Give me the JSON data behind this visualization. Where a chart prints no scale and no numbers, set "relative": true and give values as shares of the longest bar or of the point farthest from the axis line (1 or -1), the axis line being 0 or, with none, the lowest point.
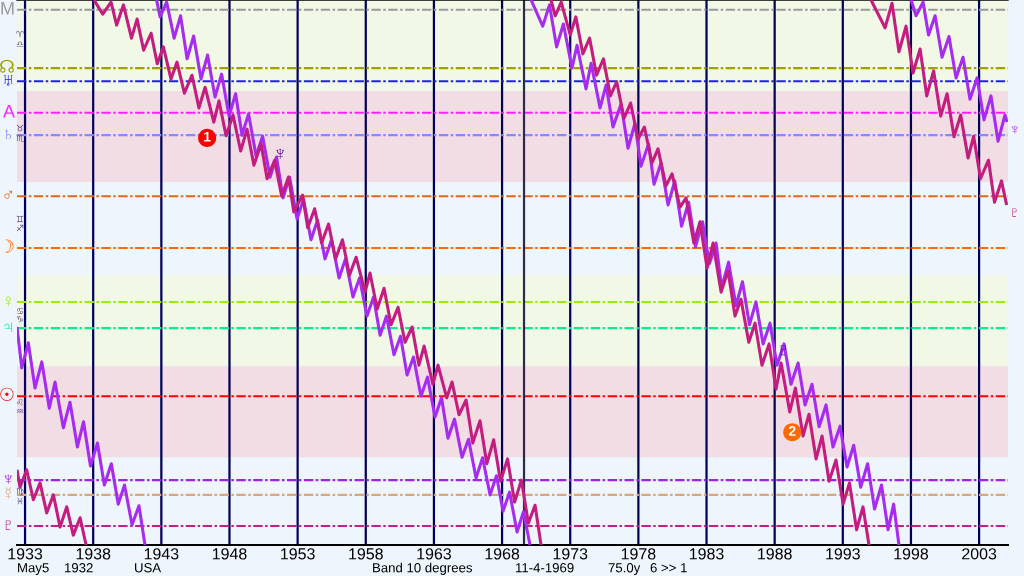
{
  "chart_data": {
    "type": "line",
    "relative": true,
    "xlim": [
      1932.41,
      2005.12
    ],
    "xticks": [
      1933,
      1938,
      1943,
      1948,
      1953,
      1958,
      1963,
      1968,
      1973,
      1978,
      1983,
      1988,
      1993,
      1998,
      2003
    ],
    "grid": "x",
    "series": [
      {
        "color": "#a52cf0",
        "x": [
          1932.41,
          1932.76,
          1933.24,
          1933.73,
          1934.23,
          1934.78,
          1935.2,
          1935.81,
          1936.3,
          1936.84,
          1937.29,
          1937.8,
          1938.31,
          1938.82,
          1939.33,
          1939.84,
          1940.3,
          1940.85,
          1941.36,
          1941.8
        ],
        "values": [
          0.4,
          0.325,
          0.371,
          0.288,
          0.336,
          0.251,
          0.299,
          0.215,
          0.262,
          0.18,
          0.226,
          0.145,
          0.187,
          0.11,
          0.149,
          0.075,
          0.11,
          0.037,
          0.072,
          0
        ]
      },
      {
        "color": "#a52cf0",
        "x": [
          1942.65,
          1942.91,
          1943.39,
          1943.94,
          1944.41,
          1944.89,
          1945.37,
          1945.91,
          1946.39,
          1946.94,
          1947.42,
          1947.97,
          1948.45,
          1948.92,
          1949.4,
          1949.95,
          1950.43,
          1950.98,
          1951.45,
          1951.93,
          1952.41,
          1952.96,
          1953.43,
          1953.98,
          1954.46,
          1955.01,
          1955.49,
          1956.04,
          1956.51,
          1957.06,
          1957.54,
          1958.09,
          1958.57,
          1959.05,
          1959.52,
          1960.07,
          1960.55,
          1961.03,
          1961.5,
          1962.05,
          1962.53,
          1963.08,
          1963.56,
          1964.03,
          1964.51,
          1965.06,
          1965.54,
          1966.09,
          1966.57,
          1967.12,
          1967.59,
          1968.07,
          1968.55,
          1969.1,
          1969.57,
          1970.05
        ],
        "values": [
          1,
          0.969,
          0.996,
          0.93,
          0.971,
          0.892,
          0.934,
          0.855,
          0.899,
          0.822,
          0.864,
          0.787,
          0.828,
          0.752,
          0.791,
          0.714,
          0.75,
          0.675,
          0.712,
          0.637,
          0.675,
          0.598,
          0.635,
          0.56,
          0.596,
          0.525,
          0.56,
          0.49,
          0.525,
          0.455,
          0.49,
          0.42,
          0.455,
          0.385,
          0.42,
          0.349,
          0.383,
          0.312,
          0.345,
          0.273,
          0.308,
          0.235,
          0.27,
          0.196,
          0.231,
          0.161,
          0.194,
          0.123,
          0.16,
          0.092,
          0.127,
          0.062,
          0.097,
          0.024,
          0.061,
          0
        ]
      },
      {
        "color": "#a52cf0",
        "x": [
          1970.13,
          1970.98,
          1971.48,
          1972.0,
          1972.5,
          1973.13,
          1973.5,
          1974.16,
          1974.53,
          1975.19,
          1975.63,
          1976.14,
          1976.73,
          1977.24,
          1977.75,
          1978.19,
          1978.75,
          1979.15,
          1979.66,
          1980.18,
          1980.67,
          1981.17,
          1981.69,
          1982.19,
          1982.71,
          1983.21,
          1983.7,
          1984.11,
          1984.62,
          1985.16,
          1985.64,
          1986.15,
          1986.63,
          1987.15,
          1987.66,
          1988.17,
          1988.69,
          1989.2,
          1989.72,
          1990.23,
          1990.74,
          1991.26,
          1991.77,
          1992.28,
          1992.8,
          1993.31,
          1993.8,
          1994.31,
          1994.82,
          1995.33,
          1995.84,
          1996.32,
          1996.73,
          1997.12
        ],
        "values": [
          1,
          0.952,
          0.991,
          0.914,
          0.956,
          0.875,
          0.917,
          0.837,
          0.884,
          0.802,
          0.844,
          0.767,
          0.809,
          0.728,
          0.774,
          0.695,
          0.736,
          0.662,
          0.701,
          0.624,
          0.668,
          0.585,
          0.629,
          0.547,
          0.593,
          0.516,
          0.554,
          0.472,
          0.519,
          0.439,
          0.483,
          0.404,
          0.446,
          0.369,
          0.407,
          0.33,
          0.369,
          0.295,
          0.334,
          0.257,
          0.295,
          0.217,
          0.257,
          0.18,
          0.218,
          0.143,
          0.183,
          0.106,
          0.149,
          0.066,
          0.11,
          0.028,
          0.075,
          0
        ]
      },
      {
        "name": "♆",
        "color": "#a52cf0",
        "x": [
          1998.01,
          1998.37,
          1998.89,
          1999.29,
          1999.77,
          2000.28,
          2000.79,
          2001.31,
          2001.82,
          2002.33,
          2002.85,
          2003.36,
          2003.87,
          2004.39,
          2004.9,
          2005.05
        ],
        "values": [
          1,
          0.971,
          0.996,
          0.936,
          0.971,
          0.895,
          0.933,
          0.857,
          0.895,
          0.818,
          0.857,
          0.78,
          0.824,
          0.741,
          0.789,
          0.776
        ]
      },
      {
        "color": "#c41d7e",
        "x": [
          1932.41,
          1932.63,
          1933.12,
          1933.61,
          1934.1,
          1934.59,
          1935.08,
          1935.57,
          1936.06,
          1936.54,
          1937.04,
          1937.48
        ],
        "values": [
          0.138,
          0.106,
          0.138,
          0.083,
          0.114,
          0.059,
          0.092,
          0.033,
          0.07,
          0.018,
          0.05,
          0
        ]
      },
      {
        "color": "#c41d7e",
        "x": [
          1938.06,
          1938.7,
          1939.31,
          1939.72,
          1940.22,
          1940.81,
          1941.22,
          1941.7,
          1942.25,
          1942.7,
          1943.15,
          1943.71,
          1944.15,
          1944.69,
          1945.25,
          1945.76,
          1946.21,
          1946.85,
          1947.23,
          1947.75,
          1948.26,
          1948.82,
          1949.29,
          1949.79,
          1950.32,
          1950.76,
          1951.31,
          1951.83,
          1952.33,
          1952.72,
          1953.36,
          1953.74,
          1954.25,
          1954.76,
          1955.27,
          1955.78,
          1956.29,
          1956.8,
          1957.29,
          1957.95,
          1958.31,
          1958.84,
          1959.34,
          1959.85,
          1960.37,
          1960.88,
          1961.4,
          1961.9,
          1962.28,
          1962.92,
          1963.3,
          1963.94,
          1964.33,
          1964.84,
          1965.36,
          1965.85,
          1966.38,
          1966.88,
          1967.38,
          1967.89,
          1968.4,
          1968.92,
          1969.42,
          1969.93,
          1970.42,
          1970.86
        ],
        "values": [
          1,
          0.974,
          0.996,
          0.954,
          0.991,
          0.93,
          0.965,
          0.908,
          0.939,
          0.883,
          0.914,
          0.855,
          0.886,
          0.829,
          0.862,
          0.802,
          0.84,
          0.776,
          0.815,
          0.751,
          0.789,
          0.723,
          0.763,
          0.697,
          0.736,
          0.672,
          0.706,
          0.64,
          0.675,
          0.611,
          0.642,
          0.582,
          0.617,
          0.554,
          0.589,
          0.525,
          0.56,
          0.495,
          0.528,
          0.464,
          0.499,
          0.433,
          0.471,
          0.404,
          0.436,
          0.372,
          0.4,
          0.33,
          0.365,
          0.295,
          0.33,
          0.27,
          0.299,
          0.239,
          0.266,
          0.187,
          0.228,
          0.149,
          0.193,
          0.117,
          0.158,
          0.079,
          0.119,
          0.04,
          0.073,
          0
        ]
      },
      {
        "color": "#c41d7e",
        "x": [
          1971.59,
          1971.9,
          1972.34,
          1973.0,
          1973.41,
          1973.93,
          1974.42,
          1974.93,
          1975.44,
          1975.95,
          1976.41,
          1976.95,
          1977.43,
          1977.98,
          1978.44,
          1979.0,
          1979.44,
          1980.03,
          1980.47,
          1981.06,
          1981.5,
          1982.07,
          1982.52,
          1983.04,
          1983.48,
          1984.07,
          1984.58,
          1985.09,
          1985.53,
          1986.1,
          1986.56,
          1987.07,
          1987.59,
          1988.1,
          1988.47,
          1989.11,
          1989.52,
          1990.08,
          1990.52,
          1991.04,
          1991.48,
          1991.99,
          1992.5,
          1993.02,
          1993.49,
          1994.01,
          1994.48,
          1994.92
        ],
        "values": [
          1,
          0.971,
          0.996,
          0.936,
          0.969,
          0.901,
          0.93,
          0.862,
          0.892,
          0.824,
          0.85,
          0.783,
          0.811,
          0.745,
          0.767,
          0.701,
          0.727,
          0.659,
          0.681,
          0.62,
          0.637,
          0.554,
          0.593,
          0.508,
          0.554,
          0.464,
          0.503,
          0.42,
          0.451,
          0.372,
          0.407,
          0.33,
          0.369,
          0.286,
          0.334,
          0.244,
          0.288,
          0.2,
          0.24,
          0.158,
          0.2,
          0.117,
          0.156,
          0.075,
          0.114,
          0.028,
          0.07,
          0
        ]
      },
      {
        "name": "♇",
        "color": "#c41d7e",
        "x": [
          1995.07,
          1996.1,
          1996.61,
          1997.12,
          1997.64,
          1998.15,
          1998.67,
          1999.16,
          1999.66,
          2000.18,
          2000.65,
          2001.16,
          2001.65,
          2002.19,
          2002.6,
          2003.1,
          2003.69,
          2004.13,
          2004.64,
          2005.02
        ],
        "values": [
          1,
          0.949,
          0.994,
          0.905,
          0.952,
          0.866,
          0.91,
          0.824,
          0.87,
          0.787,
          0.828,
          0.749,
          0.789,
          0.71,
          0.75,
          0.672,
          0.706,
          0.629,
          0.668,
          0.624
        ]
      },
      {
        "type": "scatter",
        "marker": "circle",
        "x": [
          1946.36,
          1989.29
        ],
        "values": [
          0.747,
          0.207
        ],
        "colors": [
          "#ff0000",
          "#ff6a00"
        ]
      }
    ],
    "bands": [
      {
        "axis": "y",
        "from": 0.833,
        "to": 1.0,
        "color": "#f1f8e6"
      },
      {
        "axis": "y",
        "from": 0.666,
        "to": 0.833,
        "color": "#f2dde5"
      },
      {
        "axis": "y",
        "from": 0.328,
        "to": 0.495,
        "color": "#f1f8e6"
      },
      {
        "axis": "y",
        "from": 0.161,
        "to": 0.328,
        "color": "#f2dde5"
      }
    ],
    "ref_lines": [
      {
        "axis": "y",
        "value": 0.982,
        "label": "M",
        "color": "#999999",
        "line_style": "dashed"
      },
      {
        "axis": "y",
        "value": 0.875,
        "label": "☊",
        "color": "#a0a000",
        "line_style": "dashed"
      },
      {
        "axis": "y",
        "value": 0.851,
        "label": "♅",
        "color": "#2020ee",
        "line_style": "dashed"
      },
      {
        "axis": "y",
        "value": 0.793,
        "label": "A",
        "color": "#ff20ff",
        "line_style": "dashed"
      },
      {
        "axis": "y",
        "value": 0.752,
        "label": "♄",
        "color": "#8888ff",
        "line_style": "dashed"
      },
      {
        "axis": "y",
        "value": 0.64,
        "label": "♂",
        "color": "#e06818",
        "line_style": "dashed"
      },
      {
        "axis": "y",
        "value": 0.545,
        "label": "☽",
        "color": "#ff6a00",
        "line_style": "dashed"
      },
      {
        "axis": "y",
        "value": 0.446,
        "label": "♀",
        "color": "#99ee00",
        "line_style": "dashed"
      },
      {
        "axis": "y",
        "value": 0.398,
        "label": "♃",
        "color": "#00f090",
        "line_style": "dashed"
      },
      {
        "axis": "y",
        "value": 0.273,
        "label": "☉",
        "color": "#ff0000",
        "line_style": "dashed"
      },
      {
        "axis": "y",
        "value": 0.119,
        "label": "♆",
        "color": "#a020f0",
        "line_style": "dashed"
      },
      {
        "axis": "y",
        "value": 0.092,
        "label": "☿",
        "color": "#d8a878",
        "line_style": "dashed"
      },
      {
        "axis": "y",
        "value": 0.035,
        "label": "♇",
        "color": "#c0208a",
        "line_style": "dashed"
      },
      {
        "axis": "x",
        "value": 1969.61,
        "color": "#2b2b4a",
        "line_style": "solid"
      }
    ],
    "annotations": [
      "May5",
      "1932",
      "USA",
      "Band 10 degrees",
      "11-4-1969",
      "75.0y",
      "6 >> 1",
      "♈",
      "♎",
      "♉",
      "♏",
      "♊",
      "♐",
      "♋",
      "♑",
      "♌",
      "♒",
      "♍",
      "♓",
      {
        "text": "♆",
        "x": 1951.72,
        "y": 0.716
      },
      {
        "text": "♇",
        "x": 1988.64,
        "y": 0.356
      },
      {
        "text": "1",
        "x": 1946.36,
        "y": 0.747
      },
      {
        "text": "2",
        "x": 1989.29,
        "y": 0.207
      }
    ]
  }
}
